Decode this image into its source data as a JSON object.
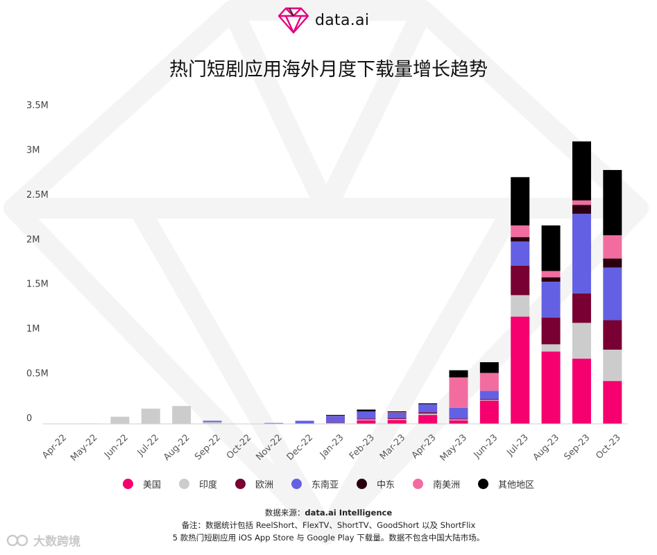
{
  "brand": {
    "name": "data.ai",
    "accent": "#e5007e"
  },
  "header": {
    "title": "热门短剧应用海外月度下载量增长趋势"
  },
  "legend_items": [
    {
      "name": "美国",
      "color": "#f5006e"
    },
    {
      "name": "印度",
      "color": "#cccccc"
    },
    {
      "name": "欧洲",
      "color": "#790032"
    },
    {
      "name": "东南亚",
      "color": "#6460e3"
    },
    {
      "name": "中东",
      "color": "#2a0010"
    },
    {
      "name": "南美洲",
      "color": "#f26c9f"
    },
    {
      "name": "其他地区",
      "color": "#000000"
    }
  ],
  "chart_data": {
    "type": "bar",
    "stacked": true,
    "title": "热门短剧应用海外月度下载量增长趋势",
    "xlabel": "",
    "ylabel": "",
    "ylim": [
      0,
      3500000
    ],
    "yticks": [
      0,
      500000,
      1000000,
      1500000,
      2000000,
      2500000,
      3000000,
      3500000
    ],
    "ytick_labels": [
      "0",
      "0.5M",
      "1M",
      "1.5M",
      "2M",
      "2.5M",
      "3M",
      "3.5M"
    ],
    "categories": [
      "Apr-22",
      "May-22",
      "Jun-22",
      "Jul-22",
      "Aug-22",
      "Sep-22",
      "Oct-22",
      "Nov-22",
      "Dec-22",
      "Jan-23",
      "Feb-23",
      "Mar-23",
      "Apr-23",
      "May-23",
      "Jun-23",
      "Jul-23",
      "Aug-23",
      "Sep-23",
      "Oct-23"
    ],
    "legend_position": "bottom",
    "grid": false,
    "series": [
      {
        "name": "美国",
        "color": "#f5006e",
        "values": [
          0,
          0,
          0,
          0,
          0,
          0,
          0,
          0,
          0,
          5000,
          40000,
          45000,
          100000,
          40000,
          260000,
          1200000,
          810000,
          730000,
          480000
        ]
      },
      {
        "name": "印度",
        "color": "#cccccc",
        "values": [
          0,
          5000,
          80000,
          170000,
          200000,
          20000,
          0,
          0,
          5000,
          5000,
          10000,
          10000,
          15000,
          10000,
          10000,
          240000,
          80000,
          400000,
          350000
        ]
      },
      {
        "name": "欧洲",
        "color": "#790032",
        "values": [
          0,
          0,
          0,
          0,
          0,
          0,
          0,
          0,
          0,
          5000,
          10000,
          10000,
          15000,
          10000,
          10000,
          330000,
          300000,
          330000,
          330000
        ]
      },
      {
        "name": "东南亚",
        "color": "#6460e3",
        "values": [
          0,
          0,
          0,
          0,
          0,
          15000,
          0,
          10000,
          30000,
          70000,
          80000,
          60000,
          90000,
          120000,
          90000,
          270000,
          400000,
          890000,
          590000
        ]
      },
      {
        "name": "中东",
        "color": "#2a0010",
        "values": [
          0,
          0,
          0,
          0,
          0,
          0,
          0,
          0,
          0,
          0,
          0,
          0,
          0,
          0,
          0,
          50000,
          50000,
          100000,
          100000
        ]
      },
      {
        "name": "南美洲",
        "color": "#f26c9f",
        "values": [
          0,
          0,
          0,
          0,
          0,
          0,
          0,
          0,
          0,
          5000,
          0,
          5000,
          0,
          340000,
          200000,
          130000,
          70000,
          50000,
          260000
        ]
      },
      {
        "name": "其他地区",
        "color": "#000000",
        "values": [
          0,
          0,
          0,
          0,
          0,
          0,
          0,
          0,
          0,
          10000,
          20000,
          10000,
          10000,
          80000,
          120000,
          540000,
          510000,
          660000,
          730000
        ]
      }
    ]
  },
  "footer": {
    "source_prefix": "数据来源：",
    "source_name": "data.ai Intelligence",
    "note_line1": "备注：数据统计包括 ReelShort、FlexTV、ShortTV、GoodShort 以及 ShortFlix",
    "note_line2": "5 款热门短剧应用 iOS App Store 与 Google Play 下载量。数据不包含中国大陆市场。"
  },
  "watermark": {
    "text": "大数跨境"
  }
}
